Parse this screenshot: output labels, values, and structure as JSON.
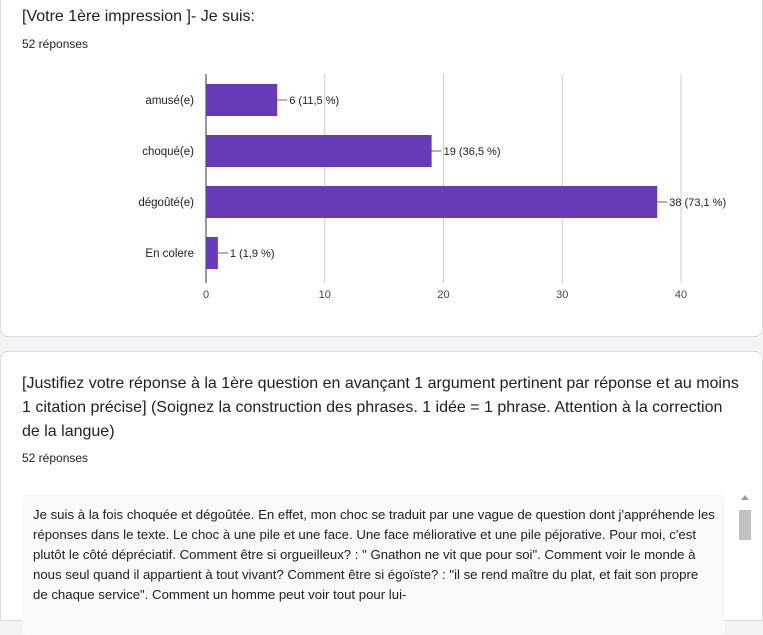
{
  "question1": {
    "title": "[Votre 1ère impression ]- Je suis:",
    "responses": "52 réponses"
  },
  "chart_data": {
    "type": "bar",
    "orientation": "horizontal",
    "categories": [
      "amusé(e)",
      "choqué(e)",
      "dégoûté(e)",
      "En colere"
    ],
    "values": [
      6,
      19,
      38,
      1
    ],
    "data_labels": [
      "6 (11,5 %)",
      "19 (36,5 %)",
      "38 (73,1 %)",
      "1 (1,9 %)"
    ],
    "xlim": [
      0,
      40
    ],
    "xticks": [
      "0",
      "10",
      "20",
      "30",
      "40"
    ],
    "grid": true,
    "bar_color": "#673ab7"
  },
  "question2": {
    "title": "[Justifiez votre réponse à la 1ère question en avançant 1 argument pertinent par réponse et au moins 1 citation précise] (Soignez la construction des phrases. 1 idée = 1 phrase. Attention à la correction de la langue)",
    "responses": "52 réponses",
    "answer": "Je suis à la fois choquée et dégoûtée. En effet, mon choc se traduit par une vague de question dont j'appréhende les réponses dans le texte. Le choc à une pile et une face. Une face méliorative et une pile péjorative. Pour moi, c'est plutôt le côté dépréciatif. Comment être si orgueilleux? : \" Gnathon ne vit que pour soi\". Comment voir le monde à nous seul quand il appartient à tout vivant? Comment être si égoïste? : \"il se rend maître du plat, et fait son propre de chaque service\". Comment un homme peut voir tout pour lui-"
  }
}
